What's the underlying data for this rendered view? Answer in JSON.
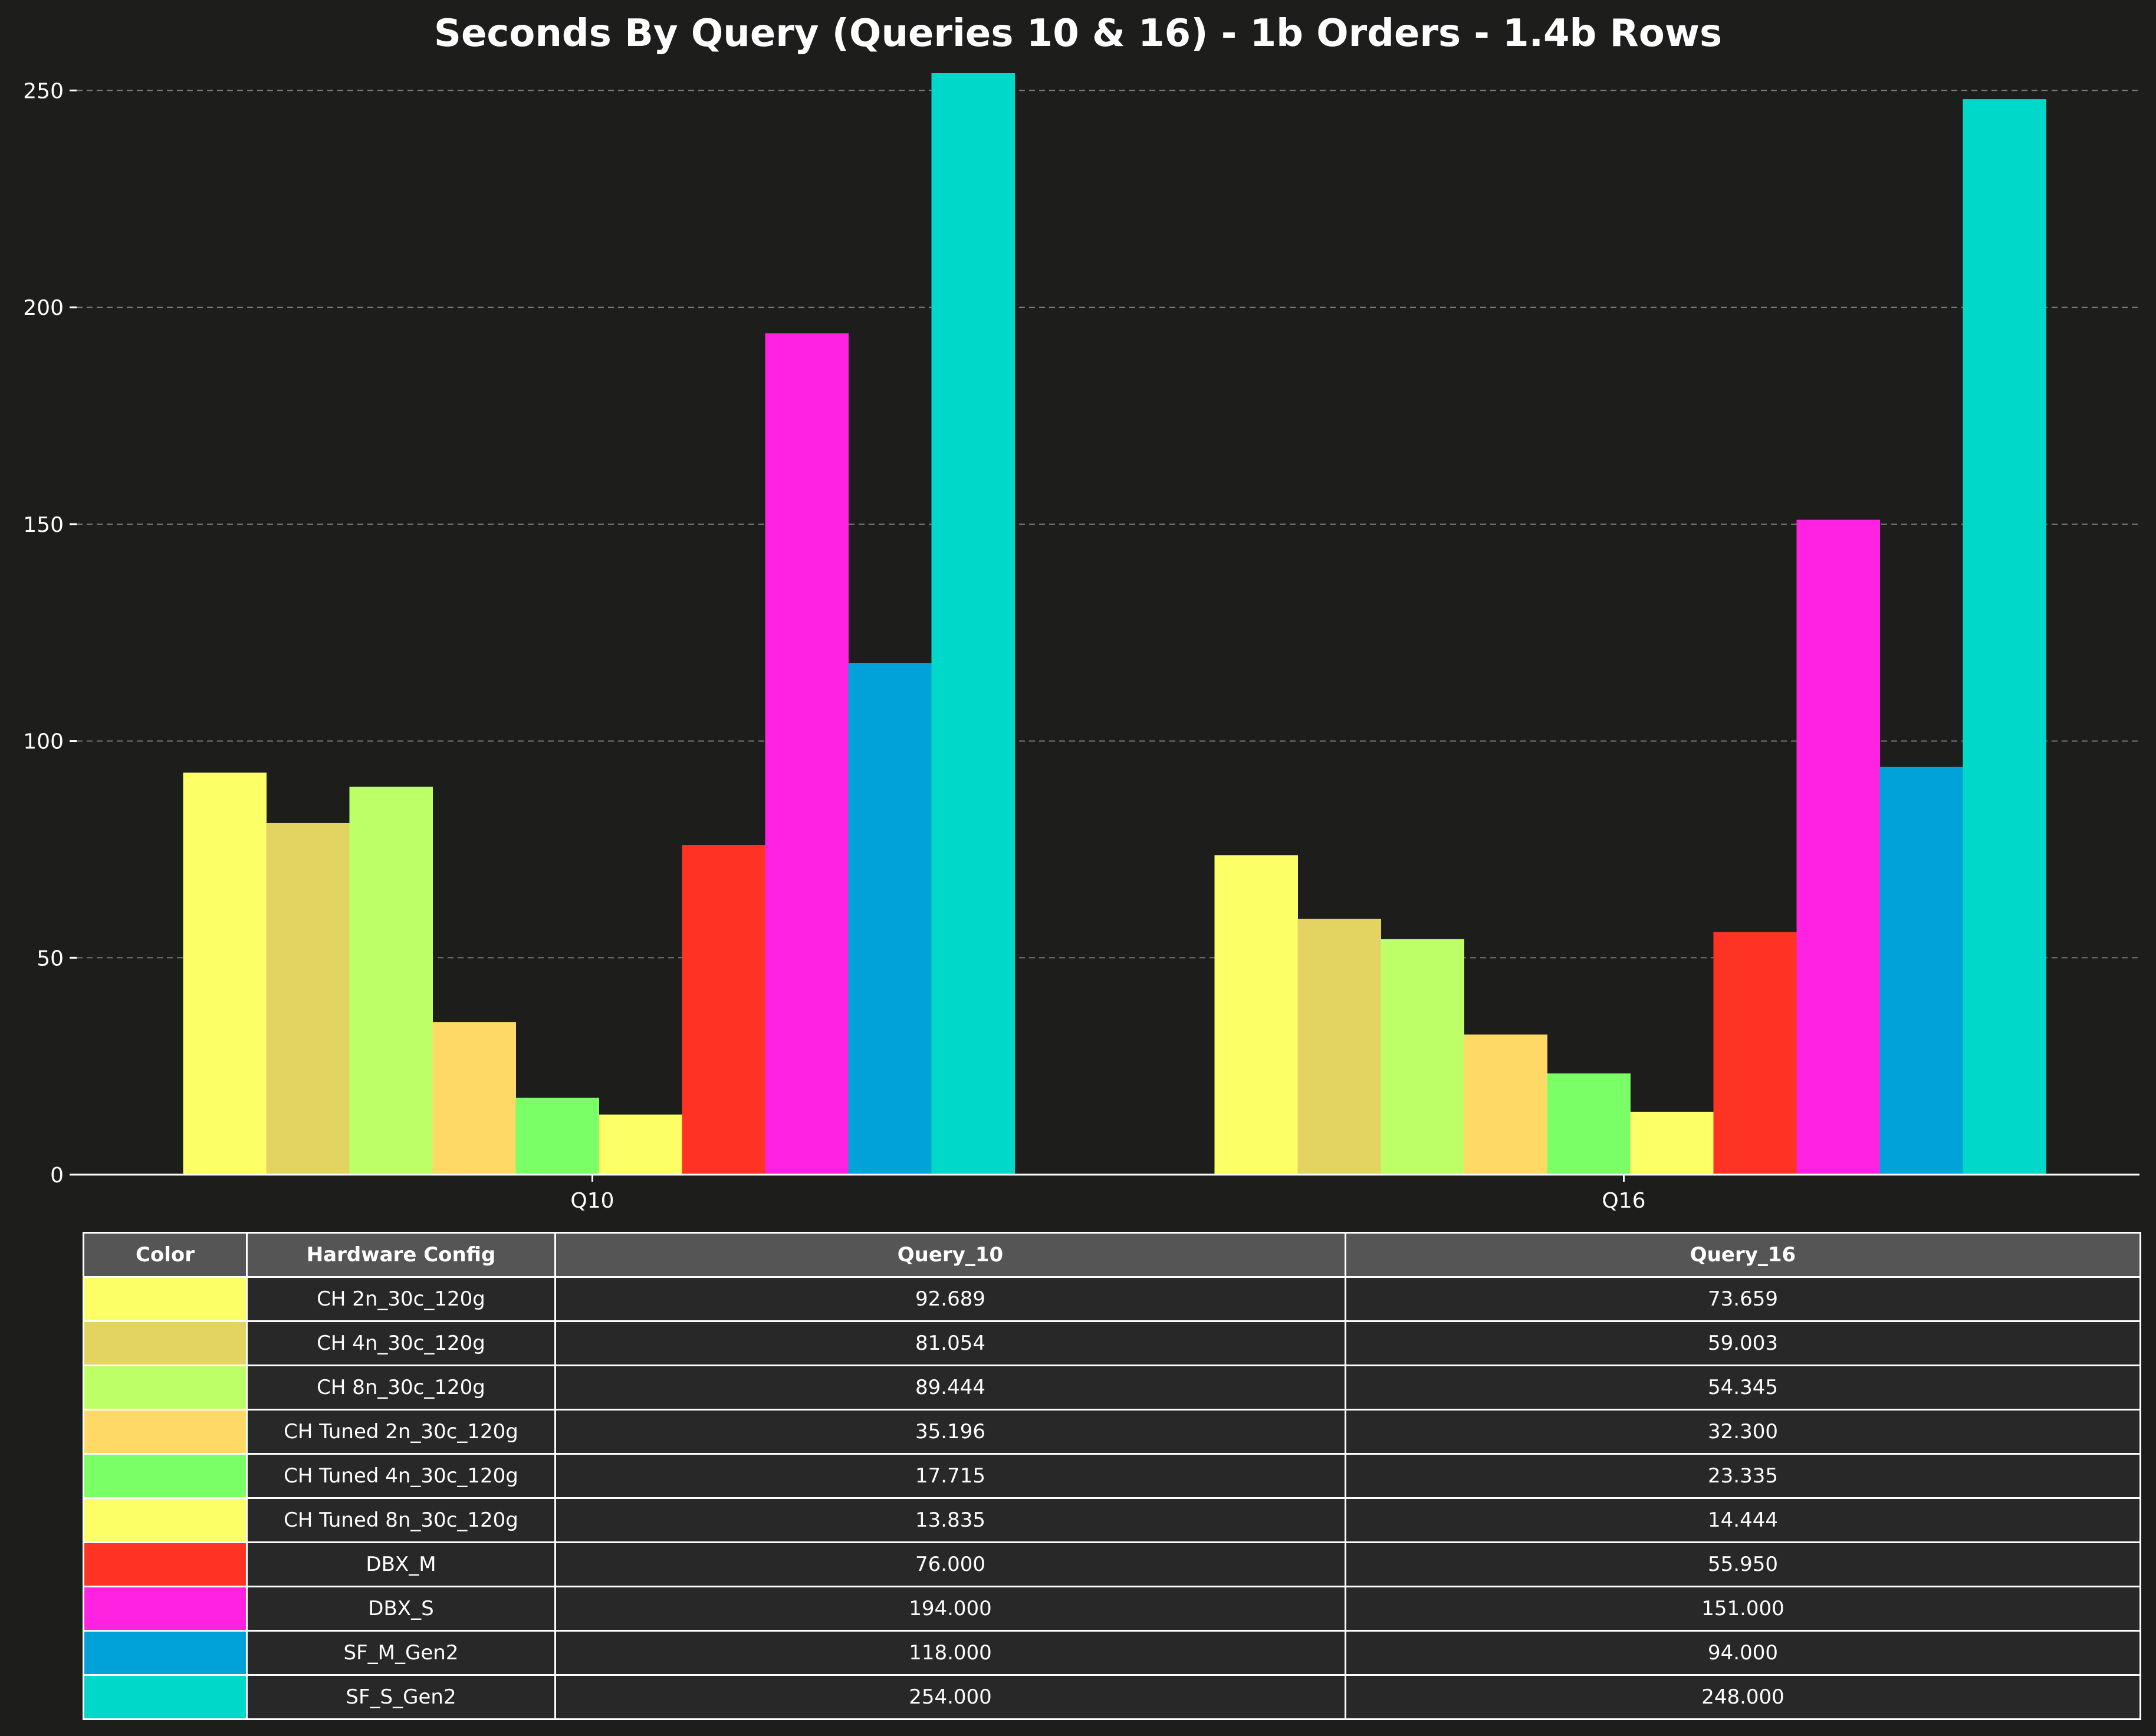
{
  "chart_data": {
    "type": "bar",
    "title": "Seconds By Query (Queries 10 & 16) - 1b Orders - 1.4b Rows",
    "xlabel": "",
    "ylabel": "",
    "categories": [
      "Q10",
      "Q16"
    ],
    "ylim": [
      0,
      254
    ],
    "yticks": [
      0,
      50,
      100,
      150,
      200,
      250
    ],
    "grid": "y-dashed",
    "legend": "table-below",
    "series": [
      {
        "name": "CH 2n_30c_120g",
        "color": "#fcff66",
        "values": [
          92.689,
          73.659
        ],
        "labels": [
          "92.689",
          "73.659"
        ]
      },
      {
        "name": "CH 4n_30c_120g",
        "color": "#e3d462",
        "values": [
          81.054,
          59.003
        ],
        "labels": [
          "81.054",
          "59.003"
        ]
      },
      {
        "name": "CH 8n_30c_120g",
        "color": "#bdff66",
        "values": [
          89.444,
          54.345
        ],
        "labels": [
          "89.444",
          "54.345"
        ]
      },
      {
        "name": "CH Tuned 2n_30c_120g",
        "color": "#ffd966",
        "values": [
          35.196,
          32.3
        ],
        "labels": [
          "35.196",
          "32.300"
        ]
      },
      {
        "name": "CH Tuned 4n_30c_120g",
        "color": "#7bff66",
        "values": [
          17.715,
          23.335
        ],
        "labels": [
          "17.715",
          "23.335"
        ]
      },
      {
        "name": "CH Tuned 8n_30c_120g",
        "color": "#fcff66",
        "values": [
          13.835,
          14.444
        ],
        "labels": [
          "13.835",
          "14.444"
        ]
      },
      {
        "name": "DBX_M",
        "color": "#ff3323",
        "values": [
          76.0,
          55.95
        ],
        "labels": [
          "76.000",
          "55.950"
        ]
      },
      {
        "name": "DBX_S",
        "color": "#ff22e0",
        "values": [
          194.0,
          151.0
        ],
        "labels": [
          "194.000",
          "151.000"
        ]
      },
      {
        "name": "SF_M_Gen2",
        "color": "#00a3d9",
        "values": [
          118.0,
          94.0
        ],
        "labels": [
          "118.000",
          "94.000"
        ]
      },
      {
        "name": "SF_S_Gen2",
        "color": "#00d9c9",
        "values": [
          254.0,
          248.0
        ],
        "labels": [
          "254.000",
          "248.000"
        ]
      }
    ],
    "table": {
      "headers": [
        "Color",
        "Hardware Config",
        "Query_10",
        "Query_16"
      ]
    }
  }
}
